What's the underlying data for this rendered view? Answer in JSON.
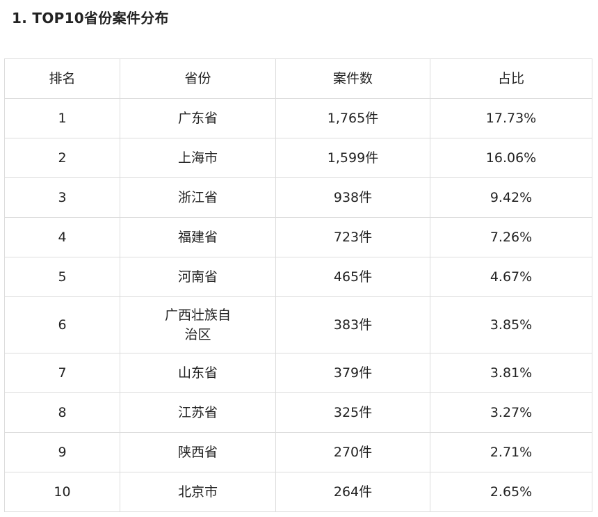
{
  "title": "1. TOP10省份案件分布",
  "table": {
    "headers": [
      "排名",
      "省份",
      "案件数",
      "占比"
    ],
    "rows": [
      [
        "1",
        "广东省",
        "1,765件",
        "17.73%"
      ],
      [
        "2",
        "上海市",
        "1,599件",
        "16.06%"
      ],
      [
        "3",
        "浙江省",
        "938件",
        "9.42%"
      ],
      [
        "4",
        "福建省",
        "723件",
        "7.26%"
      ],
      [
        "5",
        "河南省",
        "465件",
        "4.67%"
      ],
      [
        "6",
        "广西壮族自治区",
        "383件",
        "3.85%"
      ],
      [
        "7",
        "山东省",
        "379件",
        "3.81%"
      ],
      [
        "8",
        "江苏省",
        "325件",
        "3.27%"
      ],
      [
        "9",
        "陕西省",
        "270件",
        "2.71%"
      ],
      [
        "10",
        "北京市",
        "264件",
        "2.65%"
      ]
    ]
  }
}
